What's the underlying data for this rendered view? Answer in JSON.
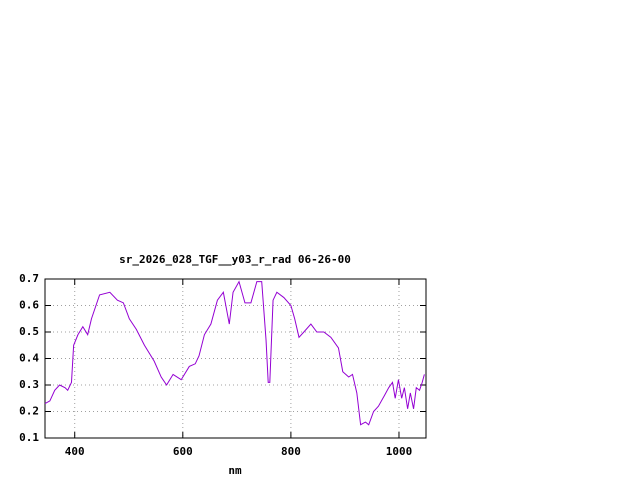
{
  "chart_data": {
    "type": "line",
    "title": "sr_2026_028_TGF__y03_r_rad 06-26-00",
    "xlabel": "nm",
    "x": [
      345,
      354,
      363,
      372,
      382,
      387,
      394,
      398,
      406,
      415,
      424,
      431,
      446,
      465,
      479,
      490,
      501,
      514,
      529,
      547,
      560,
      570,
      582,
      597,
      612,
      623,
      630,
      640,
      652,
      664,
      675,
      686,
      693,
      704,
      715,
      726,
      737,
      746,
      754,
      758,
      761,
      767,
      774,
      787,
      800,
      807,
      815,
      824,
      837,
      848,
      861,
      874,
      888,
      896,
      907,
      914,
      922,
      929,
      938,
      944,
      953,
      962,
      973,
      981,
      988,
      993,
      999,
      1005,
      1010,
      1016,
      1021,
      1027,
      1032,
      1038,
      1043,
      1047
    ],
    "series": [
      {
        "color": "#9400d3",
        "values": [
          0.23,
          0.24,
          0.28,
          0.3,
          0.29,
          0.28,
          0.31,
          0.45,
          0.49,
          0.52,
          0.49,
          0.55,
          0.64,
          0.65,
          0.62,
          0.61,
          0.55,
          0.51,
          0.45,
          0.39,
          0.33,
          0.3,
          0.34,
          0.32,
          0.37,
          0.38,
          0.41,
          0.49,
          0.53,
          0.62,
          0.65,
          0.53,
          0.65,
          0.69,
          0.61,
          0.61,
          0.69,
          0.69,
          0.47,
          0.31,
          0.31,
          0.62,
          0.65,
          0.63,
          0.6,
          0.55,
          0.48,
          0.5,
          0.53,
          0.5,
          0.5,
          0.48,
          0.44,
          0.35,
          0.33,
          0.34,
          0.27,
          0.15,
          0.16,
          0.15,
          0.2,
          0.22,
          0.26,
          0.29,
          0.31,
          0.25,
          0.32,
          0.25,
          0.29,
          0.21,
          0.27,
          0.21,
          0.29,
          0.28,
          0.31,
          0.34
        ]
      }
    ],
    "xlim": [
      345,
      1050
    ],
    "ylim": [
      0.1,
      0.7
    ],
    "xticks": [
      400,
      600,
      800,
      1000
    ],
    "yticks": [
      0.1,
      0.2,
      0.3,
      0.4,
      0.5,
      0.6,
      0.7
    ],
    "grid": true
  }
}
